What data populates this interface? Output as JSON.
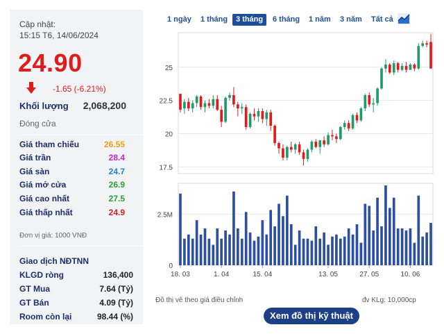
{
  "summary": {
    "updated_label": "Cập nhật:",
    "updated_time": "15:15 T6, 14/06/2024",
    "price": "24.90",
    "change": "-1.65 (-6.21%)",
    "volume_label": "Khối lượng",
    "volume_value": "2,068,200",
    "close_label": "Đóng cửa"
  },
  "prices": [
    {
      "label": "Giá tham chiếu",
      "value": "26.55",
      "color": "#f39c12"
    },
    {
      "label": "Giá trần",
      "value": "28.4",
      "color": "#c026d3"
    },
    {
      "label": "Giá sàn",
      "value": "24.7",
      "color": "#1e7fd9"
    },
    {
      "label": "Giá mở cửa",
      "value": "26.9",
      "color": "#25a32f"
    },
    {
      "label": "Giá cao nhất",
      "value": "27.5",
      "color": "#25a32f"
    },
    {
      "label": "Giá thấp nhất",
      "value": "24.9",
      "color": "#e01b1b"
    }
  ],
  "unit_note": "Đơn vị giá: 1000 VNĐ",
  "foreign": {
    "title": "Giao dịch NĐTNN",
    "rows": [
      {
        "label": "KLGD ròng",
        "value": "136,400"
      },
      {
        "label": "GT Mua",
        "value": "7.64 (Tỷ)"
      },
      {
        "label": "GT Bán",
        "value": "4.09 (Tỷ)"
      },
      {
        "label": "Room còn lại",
        "value": "98.44 (%)"
      }
    ]
  },
  "tabs": [
    "1 ngày",
    "1 tháng",
    "3 tháng",
    "6 tháng",
    "1 năm",
    "3 năm",
    "Tất cả"
  ],
  "active_tab": 2,
  "chart_icon": "chart-icon",
  "footer": {
    "note_left": "Đồ thị vẽ theo giá điều chỉnh",
    "note_right": "đv KLg: 10,000cp",
    "button": "Xem đồ thị kỹ thuật"
  },
  "chart_data": {
    "type": "candlestick",
    "price_ticks": [
      "25",
      "22.5",
      "20",
      "17.5"
    ],
    "price_tick_values": [
      25,
      22.5,
      20,
      17.5
    ],
    "volume_ticks": [
      "2.5M",
      "0"
    ],
    "volume_tick_values": [
      2500000,
      0
    ],
    "x_labels": [
      "18. 03",
      "1. 04",
      "15. 04",
      "13. 05",
      "27. 05",
      "10. 06"
    ],
    "x_label_index": [
      0,
      10,
      20,
      36,
      46,
      56
    ],
    "price_range": [
      17,
      27.6
    ],
    "volume_range": [
      0,
      4000000
    ],
    "up_color": "#1f9b6b",
    "down_color": "#e01b1b",
    "volume_color": "#2c4fa0",
    "candles": [
      [
        23.0,
        23.0,
        21.6,
        21.8,
        3500000
      ],
      [
        21.9,
        22.6,
        21.5,
        22.4,
        1300000
      ],
      [
        22.4,
        22.7,
        21.7,
        21.9,
        1500000
      ],
      [
        21.9,
        22.5,
        21.6,
        22.3,
        1300000
      ],
      [
        22.3,
        22.9,
        22.0,
        22.8,
        2200000
      ],
      [
        22.8,
        22.9,
        21.8,
        22.0,
        1500000
      ],
      [
        22.0,
        22.5,
        21.6,
        22.3,
        1800000
      ],
      [
        22.3,
        22.6,
        21.9,
        22.1,
        1300000
      ],
      [
        22.1,
        22.9,
        21.9,
        22.6,
        1000000
      ],
      [
        22.6,
        22.9,
        21.7,
        21.8,
        1800000
      ],
      [
        21.8,
        22.1,
        20.5,
        20.9,
        1300000
      ],
      [
        20.9,
        22.8,
        20.8,
        22.7,
        1700000
      ],
      [
        22.7,
        23.1,
        22.5,
        22.9,
        1500000
      ],
      [
        22.9,
        23.5,
        22.0,
        22.2,
        3600000
      ],
      [
        22.2,
        22.4,
        21.3,
        21.9,
        1800000
      ],
      [
        21.9,
        22.3,
        21.5,
        22.0,
        1300000
      ],
      [
        22.0,
        22.2,
        20.3,
        20.5,
        2600000
      ],
      [
        20.5,
        21.6,
        20.4,
        21.5,
        1600000
      ],
      [
        21.5,
        21.9,
        21.0,
        21.3,
        1200000
      ],
      [
        21.3,
        21.9,
        20.9,
        21.7,
        1400000
      ],
      [
        21.7,
        21.9,
        20.8,
        21.1,
        2200000
      ],
      [
        21.1,
        21.8,
        20.6,
        21.6,
        1500000
      ],
      [
        21.6,
        21.8,
        20.2,
        20.6,
        2700000
      ],
      [
        20.6,
        20.7,
        19.1,
        19.3,
        1900000
      ],
      [
        19.3,
        19.4,
        18.5,
        18.9,
        3000000
      ],
      [
        18.9,
        19.2,
        18.0,
        18.2,
        2400000
      ],
      [
        18.2,
        19.1,
        18.0,
        19.0,
        3400000
      ],
      [
        19.0,
        19.4,
        18.6,
        18.8,
        2000000
      ],
      [
        18.8,
        19.3,
        18.5,
        19.2,
        1000000
      ],
      [
        19.2,
        19.4,
        18.4,
        18.6,
        1700000
      ],
      [
        18.6,
        18.8,
        17.6,
        18.1,
        1300000
      ],
      [
        18.1,
        18.9,
        17.9,
        18.8,
        1300000
      ],
      [
        18.8,
        19.5,
        18.6,
        19.4,
        1200000
      ],
      [
        19.4,
        19.6,
        18.9,
        19.0,
        1900000
      ],
      [
        19.0,
        19.5,
        18.5,
        19.5,
        1300000
      ],
      [
        19.5,
        19.8,
        19.0,
        19.2,
        1600000
      ],
      [
        19.2,
        20.1,
        19.1,
        19.9,
        1000000
      ],
      [
        19.9,
        20.3,
        19.5,
        19.8,
        1400000
      ],
      [
        19.8,
        20.0,
        19.3,
        19.6,
        1500000
      ],
      [
        19.6,
        20.6,
        19.5,
        20.5,
        1300000
      ],
      [
        20.5,
        21.0,
        20.3,
        20.8,
        1400000
      ],
      [
        20.8,
        21.0,
        20.2,
        20.4,
        1800000
      ],
      [
        20.4,
        21.5,
        20.3,
        21.4,
        1500000
      ],
      [
        21.4,
        21.6,
        20.8,
        21.0,
        2000000
      ],
      [
        21.0,
        22.0,
        20.9,
        21.9,
        1100000
      ],
      [
        21.9,
        23.0,
        21.7,
        22.9,
        3000000
      ],
      [
        22.9,
        23.1,
        22.0,
        22.2,
        2900000
      ],
      [
        22.2,
        22.7,
        21.6,
        22.3,
        1700000
      ],
      [
        22.3,
        23.5,
        22.1,
        23.4,
        3300000
      ],
      [
        23.4,
        25.0,
        23.3,
        24.9,
        1900000
      ],
      [
        24.9,
        25.6,
        24.6,
        25.2,
        3900000
      ],
      [
        25.2,
        25.3,
        24.5,
        24.6,
        2800000
      ],
      [
        24.6,
        25.5,
        24.4,
        25.3,
        3300000
      ],
      [
        25.3,
        25.4,
        24.6,
        24.8,
        1800000
      ],
      [
        24.8,
        25.3,
        24.7,
        25.1,
        1800000
      ],
      [
        25.1,
        25.4,
        24.6,
        24.8,
        1700000
      ],
      [
        24.8,
        25.3,
        24.8,
        25.2,
        1800000
      ],
      [
        25.2,
        25.3,
        24.7,
        24.9,
        1100000
      ],
      [
        24.9,
        26.8,
        24.8,
        26.6,
        3400000
      ],
      [
        26.6,
        27.0,
        26.5,
        26.8,
        1400000
      ],
      [
        26.8,
        27.0,
        26.5,
        26.7,
        1600000
      ],
      [
        26.9,
        27.5,
        24.9,
        24.9,
        2068200
      ]
    ]
  }
}
